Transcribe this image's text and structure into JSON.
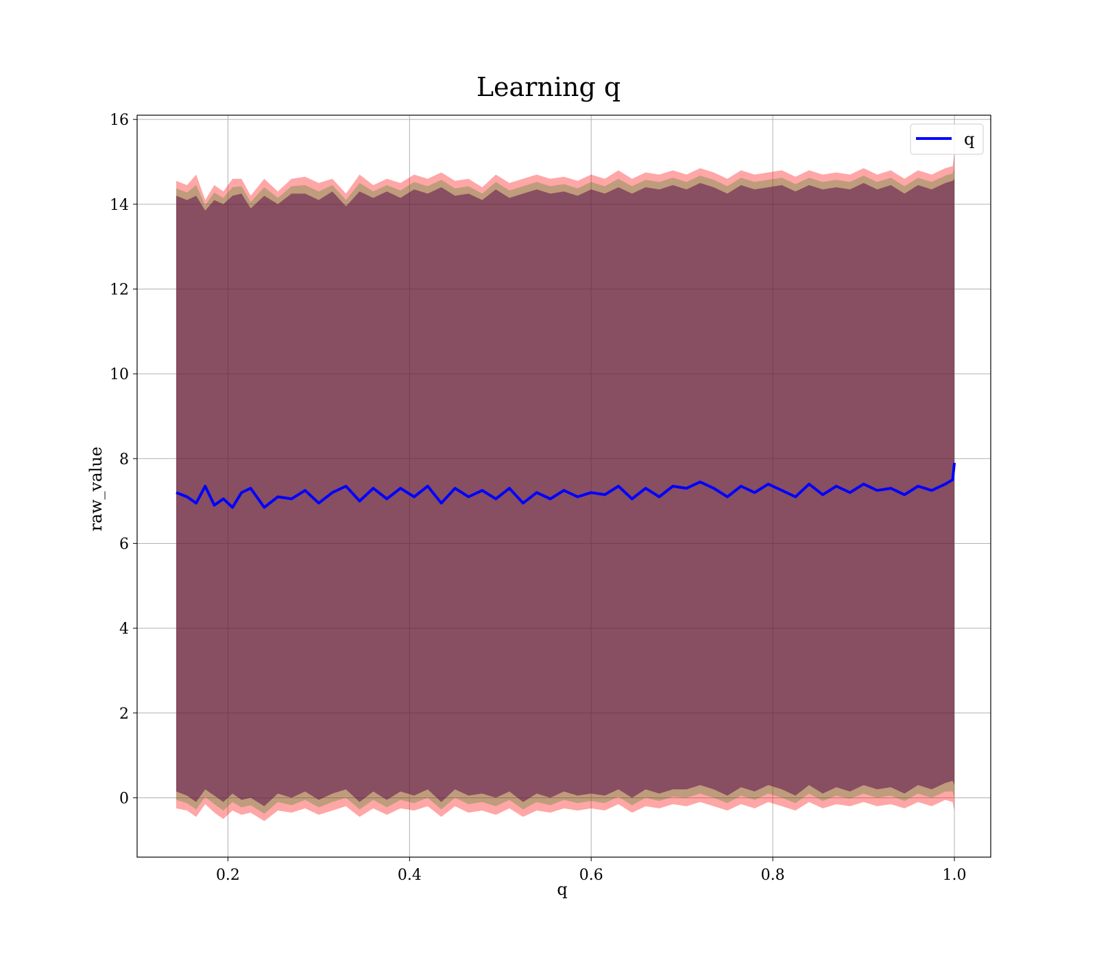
{
  "chart_data": {
    "type": "line",
    "title": "Learning q",
    "xlabel": "q",
    "ylabel": "raw_value",
    "xlim": [
      0.1,
      1.04
    ],
    "ylim": [
      -1.4,
      16.1
    ],
    "xticks": [
      0.2,
      0.4,
      0.6,
      0.8,
      1.0
    ],
    "xtick_labels": [
      "0.2",
      "0.4",
      "0.6",
      "0.8",
      "1.0"
    ],
    "yticks": [
      0,
      2,
      4,
      6,
      8,
      10,
      12,
      14,
      16
    ],
    "ytick_labels": [
      "0",
      "2",
      "4",
      "6",
      "8",
      "10",
      "12",
      "14",
      "16"
    ],
    "grid": true,
    "legend": {
      "position": "top-right",
      "entries": [
        "q"
      ]
    },
    "colors": {
      "line": "#0000ff",
      "outer_band": "#ff0000",
      "inner_band": "#008000",
      "core_band": "#5b0f4a"
    },
    "series": [
      {
        "name": "q",
        "x": [
          0.143,
          0.155,
          0.165,
          0.175,
          0.185,
          0.195,
          0.205,
          0.215,
          0.225,
          0.24,
          0.255,
          0.27,
          0.285,
          0.3,
          0.315,
          0.33,
          0.345,
          0.36,
          0.375,
          0.39,
          0.405,
          0.42,
          0.435,
          0.45,
          0.465,
          0.48,
          0.495,
          0.51,
          0.525,
          0.54,
          0.555,
          0.57,
          0.585,
          0.6,
          0.615,
          0.63,
          0.645,
          0.66,
          0.675,
          0.69,
          0.705,
          0.72,
          0.735,
          0.75,
          0.765,
          0.78,
          0.795,
          0.81,
          0.825,
          0.84,
          0.855,
          0.87,
          0.885,
          0.9,
          0.915,
          0.93,
          0.945,
          0.96,
          0.975,
          0.99,
          0.998,
          1.0
        ],
        "y": [
          7.2,
          7.1,
          6.95,
          7.35,
          6.9,
          7.05,
          6.85,
          7.2,
          7.3,
          6.85,
          7.1,
          7.05,
          7.25,
          6.95,
          7.2,
          7.35,
          7.0,
          7.3,
          7.05,
          7.3,
          7.1,
          7.35,
          6.95,
          7.3,
          7.1,
          7.25,
          7.05,
          7.3,
          6.95,
          7.2,
          7.05,
          7.25,
          7.1,
          7.2,
          7.15,
          7.35,
          7.05,
          7.3,
          7.1,
          7.35,
          7.3,
          7.45,
          7.3,
          7.1,
          7.35,
          7.2,
          7.4,
          7.25,
          7.1,
          7.4,
          7.15,
          7.35,
          7.2,
          7.4,
          7.25,
          7.3,
          7.15,
          7.35,
          7.25,
          7.4,
          7.5,
          7.9
        ],
        "upper_band_outer": [
          14.55,
          14.45,
          14.7,
          14.1,
          14.45,
          14.3,
          14.6,
          14.6,
          14.2,
          14.6,
          14.3,
          14.6,
          14.65,
          14.5,
          14.6,
          14.25,
          14.7,
          14.45,
          14.6,
          14.5,
          14.7,
          14.6,
          14.75,
          14.55,
          14.6,
          14.4,
          14.7,
          14.5,
          14.6,
          14.7,
          14.6,
          14.65,
          14.55,
          14.7,
          14.6,
          14.8,
          14.6,
          14.75,
          14.7,
          14.8,
          14.7,
          14.85,
          14.75,
          14.6,
          14.8,
          14.7,
          14.75,
          14.8,
          14.65,
          14.8,
          14.7,
          14.75,
          14.7,
          14.85,
          14.7,
          14.8,
          14.6,
          14.8,
          14.7,
          14.85,
          14.9,
          15.2
        ],
        "upper_band_core": [
          14.2,
          14.1,
          14.2,
          13.85,
          14.1,
          14.0,
          14.2,
          14.25,
          13.9,
          14.2,
          14.0,
          14.25,
          14.25,
          14.1,
          14.3,
          13.95,
          14.3,
          14.15,
          14.3,
          14.15,
          14.35,
          14.25,
          14.4,
          14.2,
          14.25,
          14.1,
          14.35,
          14.15,
          14.25,
          14.35,
          14.25,
          14.3,
          14.2,
          14.35,
          14.25,
          14.4,
          14.25,
          14.4,
          14.35,
          14.45,
          14.35,
          14.5,
          14.4,
          14.25,
          14.45,
          14.35,
          14.4,
          14.45,
          14.3,
          14.45,
          14.35,
          14.4,
          14.35,
          14.5,
          14.35,
          14.45,
          14.25,
          14.45,
          14.35,
          14.5,
          14.55,
          14.6
        ],
        "lower_band_core": [
          0.15,
          0.05,
          -0.1,
          0.2,
          0.05,
          -0.1,
          0.1,
          -0.05,
          0.0,
          -0.2,
          0.1,
          0.0,
          0.15,
          -0.05,
          0.1,
          0.2,
          -0.1,
          0.15,
          -0.05,
          0.15,
          0.05,
          0.2,
          -0.1,
          0.2,
          0.05,
          0.1,
          0.0,
          0.15,
          -0.1,
          0.1,
          0.0,
          0.15,
          0.05,
          0.1,
          0.05,
          0.2,
          0.0,
          0.2,
          0.1,
          0.2,
          0.2,
          0.3,
          0.2,
          0.05,
          0.25,
          0.15,
          0.3,
          0.2,
          0.05,
          0.3,
          0.1,
          0.25,
          0.15,
          0.3,
          0.2,
          0.25,
          0.1,
          0.3,
          0.2,
          0.35,
          0.4,
          0.3
        ],
        "lower_band_outer": [
          -0.25,
          -0.3,
          -0.45,
          -0.15,
          -0.35,
          -0.5,
          -0.3,
          -0.4,
          -0.35,
          -0.55,
          -0.3,
          -0.35,
          -0.25,
          -0.4,
          -0.3,
          -0.2,
          -0.45,
          -0.25,
          -0.4,
          -0.25,
          -0.3,
          -0.2,
          -0.45,
          -0.2,
          -0.35,
          -0.3,
          -0.4,
          -0.25,
          -0.45,
          -0.3,
          -0.35,
          -0.25,
          -0.3,
          -0.25,
          -0.3,
          -0.15,
          -0.35,
          -0.2,
          -0.25,
          -0.15,
          -0.2,
          -0.1,
          -0.2,
          -0.3,
          -0.15,
          -0.25,
          -0.1,
          -0.2,
          -0.3,
          -0.1,
          -0.25,
          -0.15,
          -0.2,
          -0.1,
          -0.2,
          -0.15,
          -0.25,
          -0.1,
          -0.2,
          -0.05,
          -0.1,
          -0.3
        ]
      }
    ]
  }
}
